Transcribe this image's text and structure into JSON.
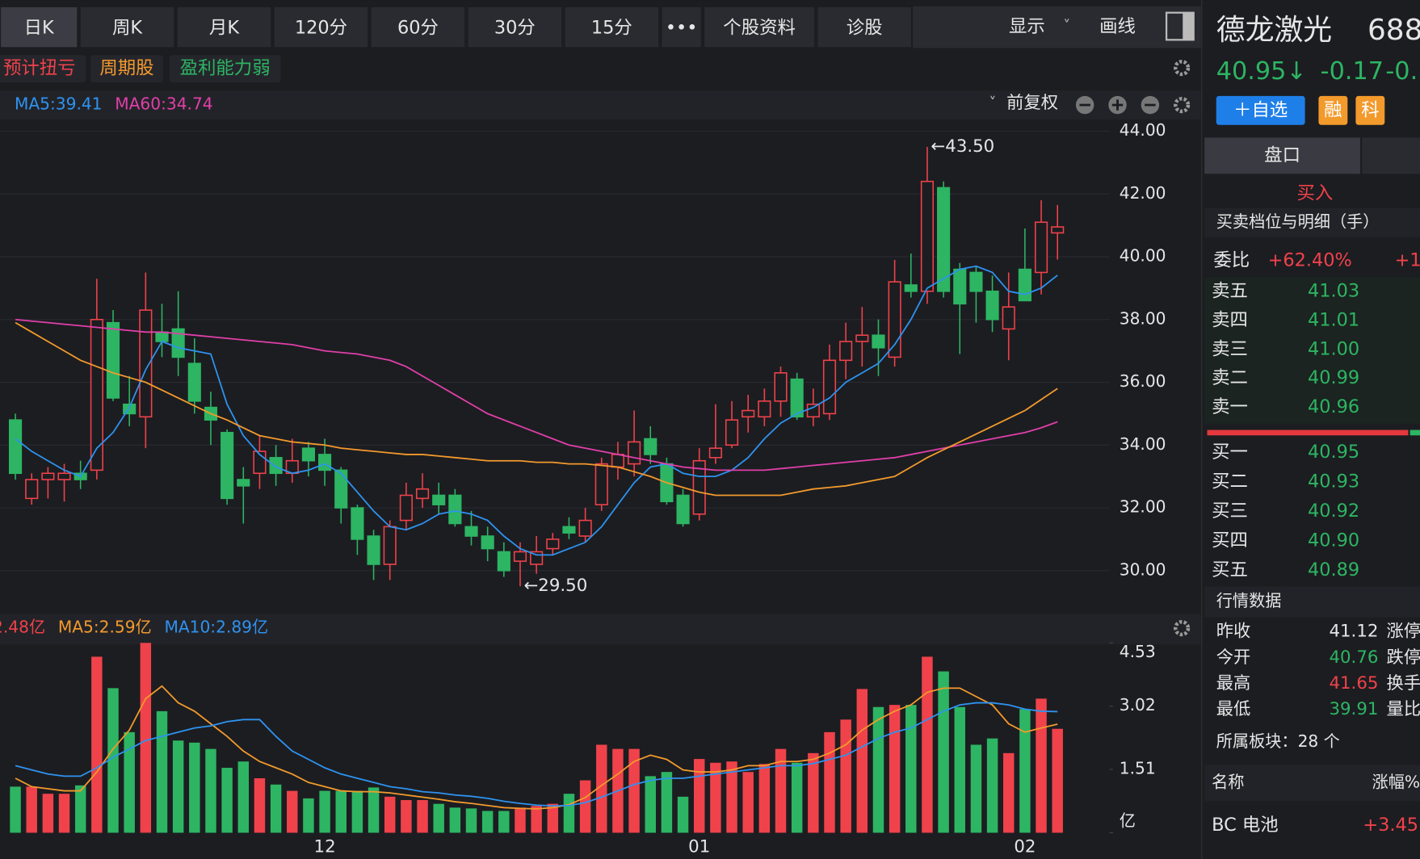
{
  "toolbar": {
    "tabs": [
      "日K",
      "周K",
      "月K",
      "120分",
      "60分",
      "30分",
      "15分",
      "•••",
      "个股资料",
      "诊股"
    ],
    "display": "显示",
    "draw": "画线"
  },
  "tags": [
    "预计扭亏",
    "周期股",
    "盈利能力弱"
  ],
  "adjust": "前复权",
  "chart_data": [
    {
      "type": "candlestick",
      "up_color": "#f0424a",
      "down_color": "#2db563",
      "open": [
        34.8,
        32.3,
        32.9,
        32.9,
        33.1,
        33.2,
        37.9,
        35.3,
        34.9,
        37.6,
        37.7,
        36.6,
        35.2,
        34.4,
        32.9,
        33.1,
        33.6,
        33.1,
        33.9,
        33.7,
        33.2,
        32.0,
        31.1,
        30.2,
        31.6,
        32.3,
        32.4,
        32.4,
        31.4,
        31.1,
        30.6,
        30.3,
        30.2,
        30.7,
        31.4,
        31.1,
        32.1,
        33.3,
        33.4,
        34.2,
        33.4,
        32.4,
        31.8,
        33.6,
        34.0,
        34.9,
        34.9,
        35.4,
        36.1,
        34.9,
        35.0,
        36.7,
        37.3,
        37.5,
        36.8,
        39.1,
        38.9,
        42.2,
        39.6,
        39.5,
        38.9,
        37.7,
        39.6,
        39.5,
        40.76
      ],
      "high": [
        35.0,
        33.1,
        33.3,
        33.4,
        33.5,
        39.3,
        38.3,
        36.2,
        39.5,
        38.5,
        38.9,
        37.4,
        35.7,
        34.5,
        33.3,
        34.3,
        34.0,
        34.2,
        34.1,
        34.2,
        33.3,
        32.1,
        31.3,
        31.6,
        32.8,
        33.1,
        32.8,
        32.6,
        31.9,
        31.4,
        30.9,
        30.9,
        31.1,
        31.2,
        31.7,
        32.0,
        33.6,
        34.1,
        35.1,
        34.6,
        33.6,
        32.6,
        33.9,
        35.3,
        35.4,
        35.6,
        35.8,
        36.5,
        36.3,
        35.8,
        37.2,
        37.9,
        38.4,
        38.0,
        39.9,
        40.1,
        43.5,
        42.4,
        39.8,
        39.7,
        39.4,
        39.5,
        40.9,
        41.8,
        41.65
      ],
      "low": [
        32.9,
        32.1,
        32.3,
        32.2,
        32.6,
        32.9,
        35.4,
        34.6,
        33.9,
        36.8,
        36.2,
        35.0,
        34.0,
        32.1,
        31.5,
        32.6,
        32.7,
        32.8,
        33.0,
        32.7,
        31.5,
        30.5,
        29.7,
        29.7,
        31.3,
        32.0,
        31.8,
        31.4,
        30.8,
        30.3,
        29.8,
        29.5,
        29.9,
        30.5,
        31.0,
        30.9,
        31.9,
        32.9,
        33.0,
        33.4,
        32.1,
        31.4,
        31.6,
        33.4,
        33.9,
        34.4,
        34.6,
        34.9,
        34.8,
        34.6,
        34.8,
        36.1,
        36.5,
        36.2,
        36.5,
        38.7,
        38.5,
        38.7,
        36.9,
        37.9,
        37.6,
        36.7,
        38.6,
        38.8,
        39.91
      ],
      "close": [
        33.1,
        32.9,
        33.1,
        33.1,
        32.9,
        38.0,
        35.5,
        35.0,
        38.3,
        37.3,
        36.8,
        35.4,
        34.8,
        32.3,
        32.7,
        33.8,
        33.1,
        33.5,
        33.5,
        33.2,
        32.0,
        31.0,
        30.2,
        31.4,
        32.4,
        32.6,
        32.1,
        31.5,
        31.1,
        30.7,
        30.0,
        30.6,
        30.6,
        31.0,
        31.2,
        31.6,
        33.4,
        33.7,
        34.1,
        33.7,
        32.2,
        31.5,
        33.5,
        33.9,
        34.8,
        35.1,
        35.4,
        36.3,
        34.9,
        35.3,
        36.7,
        37.3,
        37.5,
        37.1,
        39.2,
        38.9,
        42.4,
        38.9,
        38.5,
        38.9,
        38.0,
        38.4,
        38.6,
        41.1,
        40.95
      ],
      "series": [
        {
          "name": "MA5:39.41",
          "color": "#2e93f0",
          "values": [
            34.2,
            33.8,
            33.5,
            33.2,
            33.0,
            33.9,
            34.4,
            35.2,
            36.4,
            37.3,
            37.1,
            37.0,
            36.9,
            35.3,
            34.3,
            33.7,
            33.3,
            33.1,
            33.2,
            33.4,
            33.1,
            32.5,
            31.9,
            31.4,
            31.3,
            31.5,
            31.8,
            31.9,
            31.8,
            31.6,
            31.1,
            30.7,
            30.5,
            30.5,
            30.7,
            30.9,
            31.4,
            32.1,
            32.8,
            33.3,
            33.4,
            33.1,
            33.0,
            33.0,
            33.2,
            33.6,
            34.2,
            34.7,
            35.0,
            35.2,
            35.5,
            36.0,
            36.3,
            36.6,
            37.2,
            38.0,
            39.0,
            39.3,
            39.6,
            39.7,
            39.5,
            38.9,
            38.8,
            39.0,
            39.41
          ]
        },
        {
          "name": "MA60:34.74",
          "color": "#e03fa9",
          "values": [
            38.0,
            37.95,
            37.9,
            37.85,
            37.8,
            37.75,
            37.7,
            37.65,
            37.6,
            37.6,
            37.55,
            37.5,
            37.45,
            37.4,
            37.35,
            37.3,
            37.25,
            37.2,
            37.1,
            37.0,
            36.95,
            36.9,
            36.8,
            36.7,
            36.5,
            36.2,
            35.9,
            35.6,
            35.3,
            35.0,
            34.8,
            34.6,
            34.4,
            34.2,
            34.0,
            33.9,
            33.8,
            33.7,
            33.6,
            33.5,
            33.4,
            33.3,
            33.25,
            33.2,
            33.2,
            33.2,
            33.2,
            33.25,
            33.3,
            33.35,
            33.4,
            33.45,
            33.5,
            33.55,
            33.6,
            33.7,
            33.8,
            33.9,
            34.0,
            34.1,
            34.2,
            34.3,
            34.4,
            34.55,
            34.74
          ]
        },
        {
          "color": "#f39a2c",
          "values": [
            37.9,
            37.6,
            37.3,
            37.0,
            36.7,
            36.5,
            36.3,
            36.15,
            36.0,
            35.75,
            35.5,
            35.25,
            35.0,
            34.8,
            34.55,
            34.3,
            34.2,
            34.1,
            34.05,
            34.0,
            33.9,
            33.85,
            33.8,
            33.75,
            33.7,
            33.7,
            33.65,
            33.6,
            33.55,
            33.5,
            33.5,
            33.5,
            33.45,
            33.45,
            33.4,
            33.4,
            33.35,
            33.3,
            33.15,
            33.0,
            32.8,
            32.65,
            32.5,
            32.4,
            32.4,
            32.4,
            32.4,
            32.4,
            32.5,
            32.6,
            32.65,
            32.7,
            32.8,
            32.9,
            33.0,
            33.3,
            33.6,
            33.85,
            34.1,
            34.35,
            34.6,
            34.85,
            35.1,
            35.45,
            35.8
          ]
        }
      ],
      "ylim": [
        28.8,
        44.2
      ],
      "yticks": [
        {
          "value": 30,
          "label": "30.00"
        },
        {
          "value": 32,
          "label": "32.00"
        },
        {
          "value": 34,
          "label": "34.00"
        },
        {
          "value": 36,
          "label": "36.00"
        },
        {
          "value": 38,
          "label": "38.00"
        },
        {
          "value": 40,
          "label": "40.00"
        },
        {
          "value": 42,
          "label": "42.00"
        },
        {
          "value": 44,
          "label": "44.00"
        }
      ],
      "grid": true,
      "annotations": [
        {
          "index": 56,
          "text": "←43.50"
        },
        {
          "index": 31,
          "text": "←29.50"
        }
      ]
    },
    {
      "type": "bar",
      "categories": [
        null,
        null,
        null,
        null,
        null,
        null,
        null,
        null,
        null,
        null,
        null,
        null,
        null,
        null,
        null,
        null,
        null,
        null,
        null,
        "12",
        null,
        null,
        null,
        null,
        null,
        null,
        null,
        null,
        null,
        null,
        null,
        null,
        null,
        null,
        null,
        null,
        null,
        null,
        null,
        null,
        null,
        null,
        "01",
        null,
        null,
        null,
        null,
        null,
        null,
        null,
        null,
        null,
        null,
        null,
        null,
        null,
        null,
        null,
        null,
        null,
        null,
        null,
        "02",
        null,
        null
      ],
      "series": [
        {
          "name": "2.48亿",
          "values": [
            1.1,
            1.1,
            0.93,
            0.93,
            1.13,
            4.2,
            3.45,
            2.4,
            4.53,
            2.9,
            2.2,
            2.15,
            2.0,
            1.55,
            1.7,
            1.3,
            1.15,
            1.0,
            0.82,
            1.0,
            1.0,
            1.0,
            1.08,
            0.86,
            0.78,
            0.78,
            0.69,
            0.6,
            0.58,
            0.52,
            0.52,
            0.6,
            0.64,
            0.69,
            0.93,
            1.25,
            2.1,
            2.0,
            2.0,
            1.35,
            1.45,
            0.86,
            1.76,
            1.67,
            1.7,
            1.45,
            1.64,
            2.0,
            1.67,
            1.9,
            2.4,
            2.7,
            3.43,
            3.0,
            3.05,
            3.05,
            4.2,
            3.85,
            3.0,
            2.1,
            2.25,
            1.9,
            2.95,
            3.2,
            2.48
          ]
        },
        {
          "name": "MA5:2.59亿",
          "type": "line",
          "color": "#f39a2c",
          "values": [
            1.3,
            1.1,
            1.05,
            1.0,
            1.0,
            1.45,
            2.0,
            2.45,
            3.2,
            3.5,
            3.1,
            2.9,
            2.6,
            2.3,
            1.95,
            1.7,
            1.55,
            1.4,
            1.2,
            1.1,
            1.0,
            0.98,
            0.98,
            0.95,
            0.9,
            0.85,
            0.8,
            0.74,
            0.7,
            0.65,
            0.6,
            0.58,
            0.57,
            0.6,
            0.67,
            0.84,
            1.13,
            1.4,
            1.7,
            1.85,
            1.75,
            1.5,
            1.45,
            1.45,
            1.5,
            1.6,
            1.6,
            1.7,
            1.7,
            1.75,
            1.9,
            2.1,
            2.45,
            2.7,
            2.9,
            3.05,
            3.35,
            3.45,
            3.45,
            3.25,
            3.05,
            2.6,
            2.4,
            2.5,
            2.59
          ]
        },
        {
          "name": "MA10:2.89亿",
          "type": "line",
          "color": "#2e93f0",
          "values": [
            1.6,
            1.5,
            1.4,
            1.35,
            1.35,
            1.55,
            1.8,
            2.0,
            2.2,
            2.3,
            2.4,
            2.5,
            2.55,
            2.65,
            2.7,
            2.7,
            2.3,
            1.95,
            1.75,
            1.55,
            1.4,
            1.3,
            1.2,
            1.1,
            1.05,
            0.98,
            0.95,
            0.9,
            0.87,
            0.82,
            0.75,
            0.7,
            0.66,
            0.64,
            0.65,
            0.72,
            0.85,
            1.0,
            1.15,
            1.25,
            1.3,
            1.3,
            1.35,
            1.4,
            1.45,
            1.5,
            1.55,
            1.6,
            1.6,
            1.65,
            1.75,
            1.85,
            2.05,
            2.25,
            2.4,
            2.5,
            2.7,
            2.9,
            3.05,
            3.1,
            3.1,
            3.05,
            2.95,
            2.9,
            2.89
          ]
        }
      ],
      "ylim": [
        0,
        4.6
      ],
      "yticks": [
        {
          "value": 0,
          "label": "亿"
        },
        1.51,
        3.02,
        4.53
      ]
    }
  ],
  "quote": {
    "name": "德龙激光",
    "code": "688",
    "price": "40.95↓",
    "change": "-0.17",
    "change_pct": "-0.",
    "buttons": [
      "＋自选",
      "融",
      "科"
    ],
    "tab": "盘口",
    "buy": "买入",
    "depth_title": "买卖档位与明细（手）",
    "ratio": [
      "委比",
      "+62.40%",
      "+1"
    ],
    "asks": [
      [
        "卖五",
        "41.03"
      ],
      [
        "卖四",
        "41.01"
      ],
      [
        "卖三",
        "41.00"
      ],
      [
        "卖二",
        "40.99"
      ],
      [
        "卖一",
        "40.96"
      ]
    ],
    "bids": [
      [
        "买一",
        "40.95"
      ],
      [
        "买二",
        "40.93"
      ],
      [
        "买三",
        "40.92"
      ],
      [
        "买四",
        "40.90"
      ],
      [
        "买五",
        "40.89"
      ]
    ],
    "market_title": "行情数据",
    "stats": [
      [
        "昨收",
        "41.12",
        "涨停"
      ],
      [
        "今开",
        "40.76",
        "跌停"
      ],
      [
        "最高",
        "41.65",
        "换手"
      ],
      [
        "最低",
        "39.91",
        "量比"
      ]
    ],
    "sector": "所属板块：28 个",
    "sector_header": [
      "名称",
      "涨幅%"
    ],
    "sector_rows": [
      [
        "BC 电池",
        "+3.45"
      ]
    ]
  }
}
